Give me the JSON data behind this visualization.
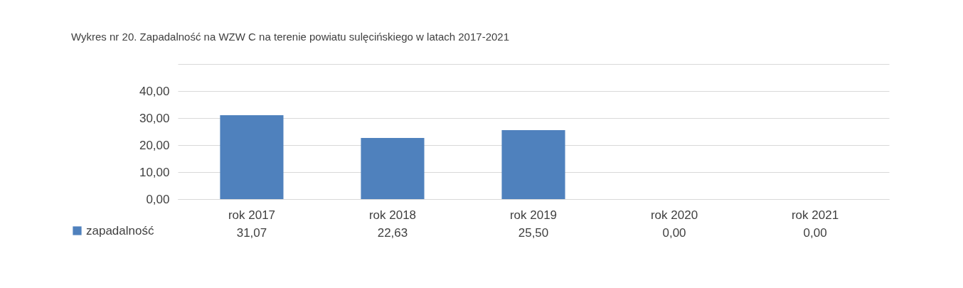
{
  "chart_data": {
    "type": "bar",
    "title": "Wykres nr 20. Zapadalność na WZW C na terenie powiatu sulęcińskiego w latach 2017-2021",
    "categories": [
      "rok 2017",
      "rok 2018",
      "rok 2019",
      "rok 2020",
      "rok 2021"
    ],
    "series": [
      {
        "name": "zapadalność",
        "color": "#4f81bd",
        "values": [
          31.07,
          22.63,
          25.5,
          0,
          0
        ],
        "value_labels": [
          "31,07",
          "22,63",
          "25,50",
          "0,00",
          "0,00"
        ]
      }
    ],
    "ylim": [
      0,
      50
    ],
    "yticks": [
      {
        "value": 0,
        "label": "0,00"
      },
      {
        "value": 10,
        "label": "10,00"
      },
      {
        "value": 20,
        "label": "20,00"
      },
      {
        "value": 30,
        "label": "30,00"
      },
      {
        "value": 40,
        "label": "40,00"
      },
      {
        "value": 50,
        "label": null
      }
    ],
    "grid": "y",
    "legend": "bottom left"
  }
}
